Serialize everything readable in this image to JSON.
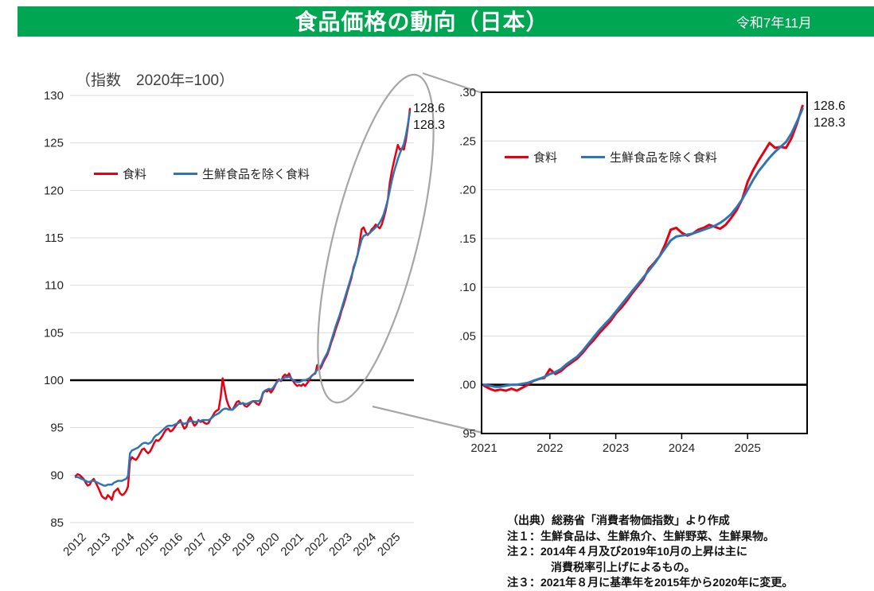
{
  "header": {
    "title": "食品価格の動向（日本）",
    "date": "令和7年11月",
    "bg_color": "#00a651",
    "text_color": "#ffffff"
  },
  "unit_label": "（指数　2020年=100）",
  "legend": {
    "series1": "食料",
    "series2": "生鮮食品を除く食料"
  },
  "colors": {
    "food": "#e60012",
    "ex_fresh": "#2e75b6",
    "grid": "#d9d9d9",
    "baseline": "#000000",
    "callout": "#a6a6a6",
    "axis_text": "#262626"
  },
  "left_chart": {
    "y_ticks": [
      130,
      125,
      120,
      115,
      110,
      105,
      100,
      95,
      90,
      85
    ],
    "x_labels": [
      "2012",
      "2013",
      "2014",
      "2015",
      "2016",
      "2017",
      "2018",
      "2019",
      "2020",
      "2021",
      "2022",
      "2023",
      "2024",
      "2025"
    ],
    "end_labels": [
      "128.6",
      "128.3"
    ]
  },
  "inset_chart": {
    "y_tick_labels": [
      ".30",
      ".25",
      ".20",
      ".15",
      ".10",
      ".05",
      ".00",
      "95"
    ],
    "y_tick_values": [
      130,
      125,
      120,
      115,
      110,
      105,
      100,
      95
    ],
    "x_labels": [
      "2021",
      "2022",
      "2023",
      "2024",
      "2025"
    ],
    "end_labels": [
      "128.6",
      "128.3"
    ]
  },
  "notes": {
    "source": "（出典）総務省「消費者物価指数」より作成",
    "note1": "注１：生鮮食品は、生鮮魚介、生鮮野菜、生鮮果物。",
    "note2a": "注２：2014年４月及び2019年10月の上昇は主に",
    "note2b": "消費税率引上げによるもの。",
    "note3": "注３：2021年８月に基準年を2015年から2020年に変更。"
  },
  "chart_data": {
    "type": "line",
    "title": "食品価格の動向（日本）",
    "subtitle": "（指数　2020年=100）",
    "frequency": "monthly",
    "x_start": "2012-01",
    "x_end": "2025-11",
    "ylim_main": [
      85,
      130
    ],
    "ylim_inset": [
      95,
      130
    ],
    "baseline": 100,
    "inset_x_start": "2021-01",
    "inset_start_index": 108,
    "grid": true,
    "legend_position": "inside-top-left",
    "series": [
      {
        "name": "食料",
        "color": "#e60012",
        "end_value": 128.6,
        "values": [
          89.9,
          90.1,
          90.0,
          89.8,
          89.6,
          89.2,
          88.9,
          89.0,
          89.4,
          89.6,
          89.2,
          88.8,
          88.3,
          87.8,
          87.6,
          87.5,
          87.9,
          87.7,
          87.4,
          88.2,
          88.4,
          88.6,
          88.1,
          87.9,
          88.0,
          88.3,
          88.8,
          91.5,
          91.9,
          91.7,
          91.6,
          91.9,
          92.3,
          92.7,
          92.8,
          92.5,
          92.3,
          92.5,
          92.9,
          93.4,
          93.7,
          93.6,
          93.8,
          94.1,
          94.5,
          94.8,
          94.9,
          94.6,
          94.7,
          95.0,
          95.3,
          95.6,
          95.8,
          95.3,
          94.9,
          95.1,
          95.8,
          96.1,
          95.6,
          95.2,
          95.4,
          95.8,
          95.6,
          95.7,
          95.5,
          95.4,
          95.5,
          95.9,
          96.2,
          96.6,
          96.8,
          96.9,
          98.2,
          100.2,
          99.0,
          97.9,
          97.3,
          96.9,
          96.9,
          97.3,
          97.7,
          97.8,
          97.5,
          97.6,
          97.3,
          97.2,
          97.4,
          97.6,
          97.8,
          97.7,
          97.5,
          97.4,
          97.8,
          98.6,
          98.9,
          98.8,
          99.0,
          98.7,
          99.0,
          99.4,
          99.9,
          100.1,
          99.9,
          100.4,
          100.6,
          100.4,
          100.7,
          100.2,
          99.9,
          99.6,
          99.4,
          99.5,
          99.4,
          99.6,
          99.4,
          99.7,
          100.0,
          100.4,
          100.6,
          100.7,
          101.6,
          101.1,
          101.4,
          101.9,
          102.3,
          102.7,
          103.3,
          104.0,
          104.6,
          105.3,
          105.9,
          106.5,
          107.3,
          107.9,
          108.6,
          109.4,
          110.1,
          110.8,
          111.9,
          112.5,
          113.2,
          114.4,
          115.9,
          116.1,
          115.6,
          115.3,
          115.5,
          115.9,
          116.1,
          116.4,
          116.2,
          116.0,
          116.4,
          117.1,
          117.9,
          119.0,
          120.8,
          122.0,
          123.0,
          123.9,
          124.8,
          124.3,
          124.4,
          124.3,
          125.3,
          126.8,
          128.6
        ]
      },
      {
        "name": "生鮮食品を除く食料",
        "color": "#2e75b6",
        "end_value": 128.3,
        "values": [
          89.8,
          89.8,
          89.7,
          89.6,
          89.5,
          89.4,
          89.3,
          89.3,
          89.4,
          89.4,
          89.3,
          89.2,
          89.1,
          89.0,
          88.9,
          88.9,
          89.0,
          89.0,
          89.0,
          89.2,
          89.3,
          89.4,
          89.4,
          89.4,
          89.5,
          89.6,
          89.9,
          92.3,
          92.6,
          92.7,
          92.8,
          92.9,
          93.1,
          93.3,
          93.4,
          93.4,
          93.3,
          93.4,
          93.6,
          94.0,
          94.2,
          94.3,
          94.5,
          94.7,
          94.9,
          95.1,
          95.2,
          95.2,
          95.2,
          95.3,
          95.4,
          95.5,
          95.6,
          95.5,
          95.4,
          95.5,
          95.6,
          95.7,
          95.7,
          95.6,
          95.6,
          95.7,
          95.7,
          95.8,
          95.8,
          95.8,
          95.8,
          95.9,
          96.1,
          96.3,
          96.4,
          96.5,
          96.7,
          96.9,
          97.0,
          97.0,
          96.9,
          96.9,
          96.9,
          97.1,
          97.3,
          97.5,
          97.5,
          97.6,
          97.5,
          97.5,
          97.6,
          97.7,
          97.8,
          97.8,
          97.8,
          97.8,
          98.0,
          98.7,
          98.9,
          99.0,
          99.1,
          99.0,
          99.2,
          99.5,
          99.8,
          100.0,
          100.0,
          100.2,
          100.3,
          100.3,
          100.4,
          100.2,
          100.0,
          99.9,
          99.8,
          99.8,
          99.9,
          100.0,
          100.0,
          100.1,
          100.2,
          100.4,
          100.6,
          100.8,
          101.1,
          101.3,
          101.6,
          102.1,
          102.5,
          102.9,
          103.5,
          104.2,
          104.9,
          105.6,
          106.2,
          106.8,
          107.5,
          108.2,
          108.9,
          109.6,
          110.3,
          111.0,
          111.7,
          112.4,
          113.2,
          114.0,
          114.8,
          115.2,
          115.3,
          115.4,
          115.5,
          115.7,
          115.9,
          116.1,
          116.3,
          116.6,
          117.0,
          117.5,
          118.2,
          119.0,
          120.0,
          121.0,
          121.9,
          122.6,
          123.3,
          123.9,
          124.4,
          124.9,
          125.8,
          127.0,
          128.3
        ]
      }
    ]
  }
}
